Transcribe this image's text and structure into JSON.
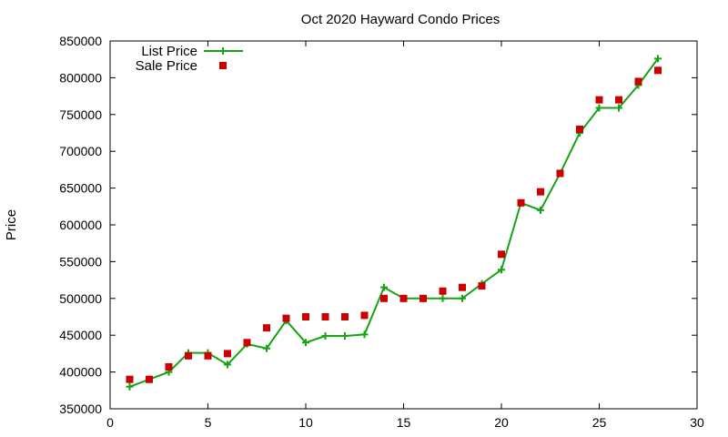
{
  "chart_data": {
    "type": "line",
    "title": "Oct 2020 Hayward Condo Prices",
    "xlabel": "",
    "ylabel": "Price",
    "xlim": [
      0,
      30
    ],
    "ylim": [
      350000,
      850000
    ],
    "x_ticks": [
      0,
      5,
      10,
      15,
      20,
      25,
      30
    ],
    "y_ticks": [
      350000,
      400000,
      450000,
      500000,
      550000,
      600000,
      650000,
      700000,
      750000,
      800000,
      850000
    ],
    "grid": false,
    "legend_position": "top-left",
    "x": [
      1,
      2,
      3,
      4,
      5,
      6,
      7,
      8,
      9,
      10,
      11,
      12,
      13,
      14,
      15,
      16,
      17,
      18,
      19,
      20,
      21,
      22,
      23,
      24,
      25,
      26,
      27,
      28
    ],
    "series": [
      {
        "name": "List Price",
        "kind": "line-points",
        "marker": "plus",
        "color": "#16a314",
        "values": [
          380000,
          390000,
          400000,
          426000,
          426000,
          410000,
          438000,
          432000,
          470000,
          440000,
          449000,
          449000,
          451000,
          515000,
          500000,
          500000,
          500000,
          500000,
          520000,
          539000,
          630000,
          620000,
          670000,
          725000,
          759000,
          759000,
          790000,
          826000
        ]
      },
      {
        "name": "Sale Price",
        "kind": "points",
        "marker": "square",
        "color": "#cc0000",
        "values": [
          390000,
          390000,
          407000,
          422000,
          422000,
          425000,
          440000,
          460000,
          473000,
          475000,
          475000,
          475000,
          477000,
          500000,
          500000,
          500000,
          510000,
          515000,
          517000,
          560000,
          630000,
          645000,
          670000,
          730000,
          770000,
          770000,
          795000,
          810000
        ]
      }
    ]
  }
}
